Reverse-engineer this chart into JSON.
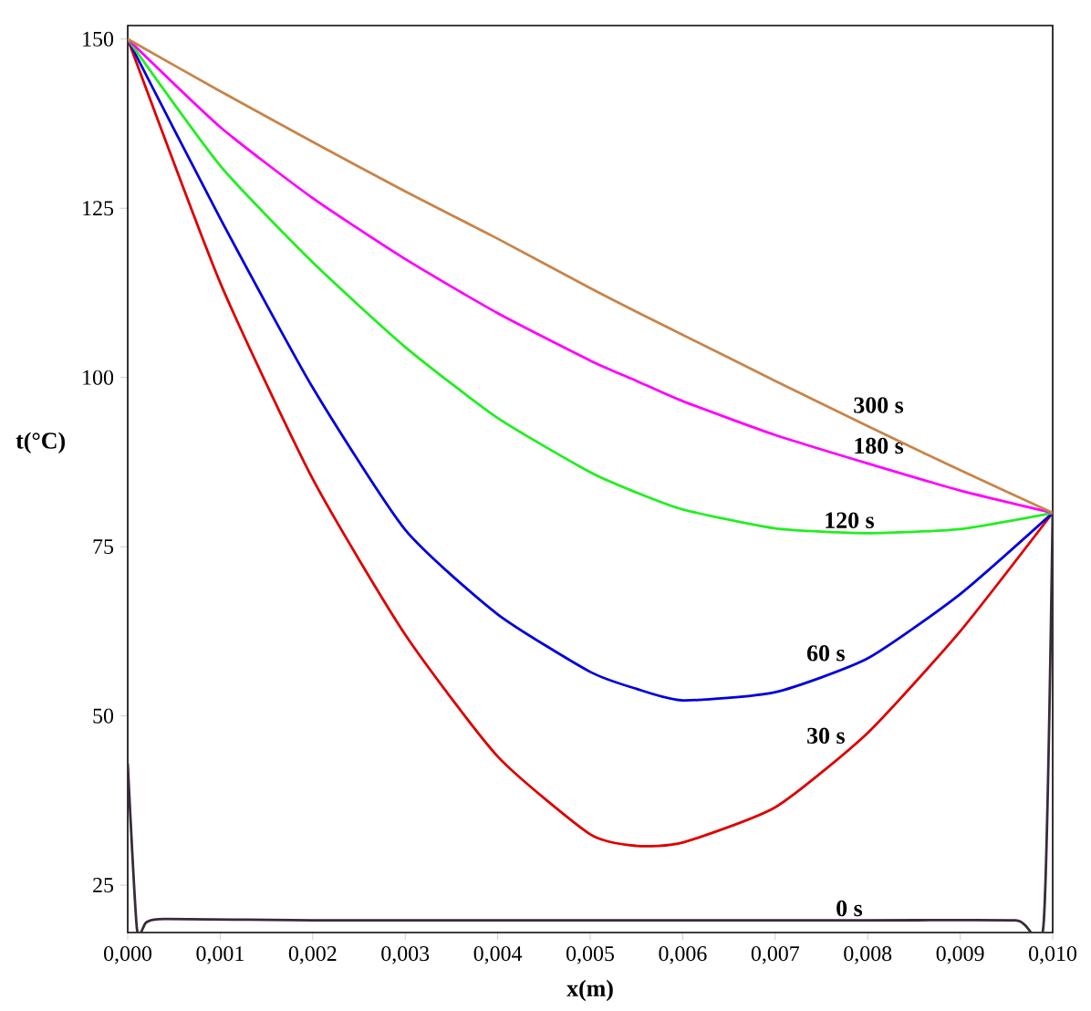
{
  "chart_data": {
    "type": "line",
    "xlabel": "**x**(m)",
    "ylabel": "**t**(°C)",
    "x": [
      0,
      0.001,
      0.002,
      0.003,
      0.004,
      0.005,
      0.0055,
      0.006,
      0.007,
      0.008,
      0.009,
      0.01
    ],
    "series": [
      {
        "name": "0 s",
        "color": "#3a2a3a",
        "x": [
          0,
          0.0001,
          0.0002,
          0.0004,
          0.002,
          0.005,
          0.008,
          0.0096,
          0.0099,
          0.01
        ],
        "values": [
          43,
          18.5,
          19.5,
          20,
          19.8,
          19.8,
          19.8,
          19.8,
          19,
          80
        ]
      },
      {
        "name": "30 s",
        "color": "#dd0000",
        "values": [
          150,
          114,
          85,
          62,
          44,
          32.5,
          30.8,
          31.3,
          36.5,
          47.5,
          62.5,
          80
        ]
      },
      {
        "name": "60 s",
        "color": "#0000dd",
        "values": [
          150,
          123.5,
          98.5,
          77.5,
          65,
          56.5,
          54,
          52.3,
          53.5,
          58.5,
          68,
          80
        ]
      },
      {
        "name": "120 s",
        "color": "#22ee22",
        "values": [
          150,
          131.3,
          117,
          104.5,
          94,
          86,
          83,
          80.5,
          77.7,
          77,
          77.6,
          80
        ]
      },
      {
        "name": "180 s",
        "color": "#ff00ff",
        "values": [
          150,
          137,
          126.5,
          117.5,
          109.5,
          102.5,
          99.5,
          96.5,
          91.5,
          87.3,
          83.3,
          80
        ]
      },
      {
        "name": "300 s",
        "color": "#c8844a",
        "values": [
          150,
          142.3,
          134.8,
          127.5,
          120.5,
          113.2,
          109.7,
          106.3,
          99.5,
          92.8,
          86.3,
          80
        ]
      }
    ],
    "xlim": [
      0,
      0.01
    ],
    "ylim": [
      18,
      152
    ],
    "xticks": [
      {
        "value": 0,
        "label": "0,000"
      },
      {
        "value": 0.001,
        "label": "0,001"
      },
      {
        "value": 0.002,
        "label": "0,002"
      },
      {
        "value": 0.003,
        "label": "0,003"
      },
      {
        "value": 0.004,
        "label": "0,004"
      },
      {
        "value": 0.005,
        "label": "0,005"
      },
      {
        "value": 0.006,
        "label": "0,006"
      },
      {
        "value": 0.007,
        "label": "0,007"
      },
      {
        "value": 0.008,
        "label": "0,008"
      },
      {
        "value": 0.009,
        "label": "0,009"
      },
      {
        "value": 0.01,
        "label": "0,010"
      }
    ],
    "yticks": [
      25,
      50,
      75,
      100,
      125,
      150
    ],
    "grid": false,
    "legend": false
  }
}
